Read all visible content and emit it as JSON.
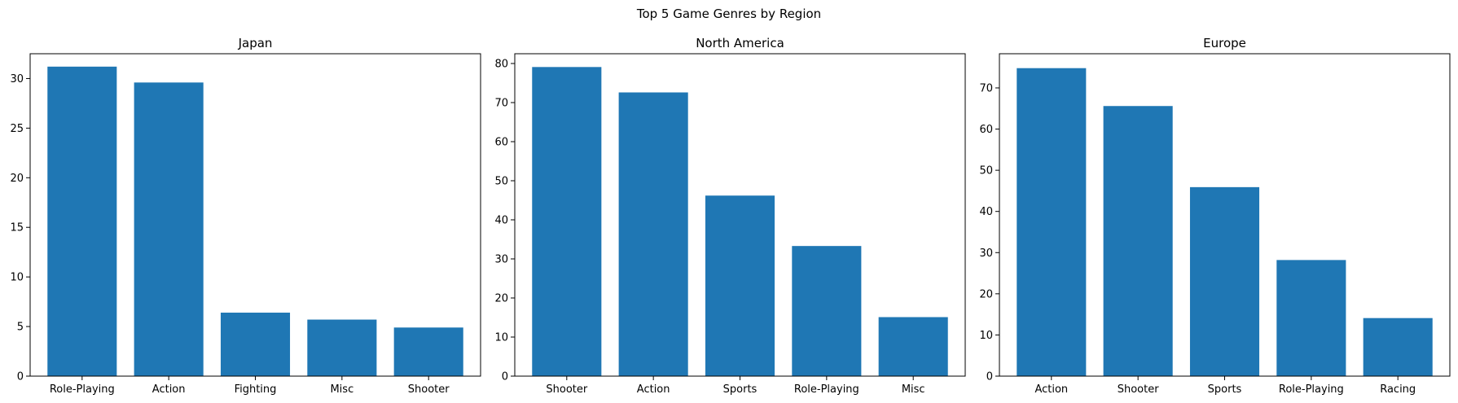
{
  "figure": {
    "suptitle": "Top 5 Game Genres by Region"
  },
  "bar_color": "#1f77b4",
  "chart_data": [
    {
      "type": "bar",
      "title": "Japan",
      "xlabel": "",
      "ylabel": "",
      "categories": [
        "Role-Playing",
        "Action",
        "Fighting",
        "Misc",
        "Shooter"
      ],
      "values": [
        31.2,
        29.6,
        6.4,
        5.7,
        4.9
      ],
      "ylim": [
        0,
        32.5
      ],
      "yticks": [
        0,
        5,
        10,
        15,
        20,
        25,
        30
      ],
      "grid": false
    },
    {
      "type": "bar",
      "title": "North America",
      "xlabel": "",
      "ylabel": "",
      "categories": [
        "Shooter",
        "Action",
        "Sports",
        "Role-Playing",
        "Misc"
      ],
      "values": [
        79.1,
        72.6,
        46.2,
        33.3,
        15.1
      ],
      "ylim": [
        0,
        82.5
      ],
      "yticks": [
        0,
        10,
        20,
        30,
        40,
        50,
        60,
        70,
        80
      ],
      "grid": false
    },
    {
      "type": "bar",
      "title": "Europe",
      "xlabel": "",
      "ylabel": "",
      "categories": [
        "Action",
        "Shooter",
        "Sports",
        "Role-Playing",
        "Racing"
      ],
      "values": [
        74.8,
        65.6,
        45.9,
        28.2,
        14.1
      ],
      "ylim": [
        0,
        78.3
      ],
      "yticks": [
        0,
        10,
        20,
        30,
        40,
        50,
        60,
        70
      ],
      "grid": false
    }
  ]
}
